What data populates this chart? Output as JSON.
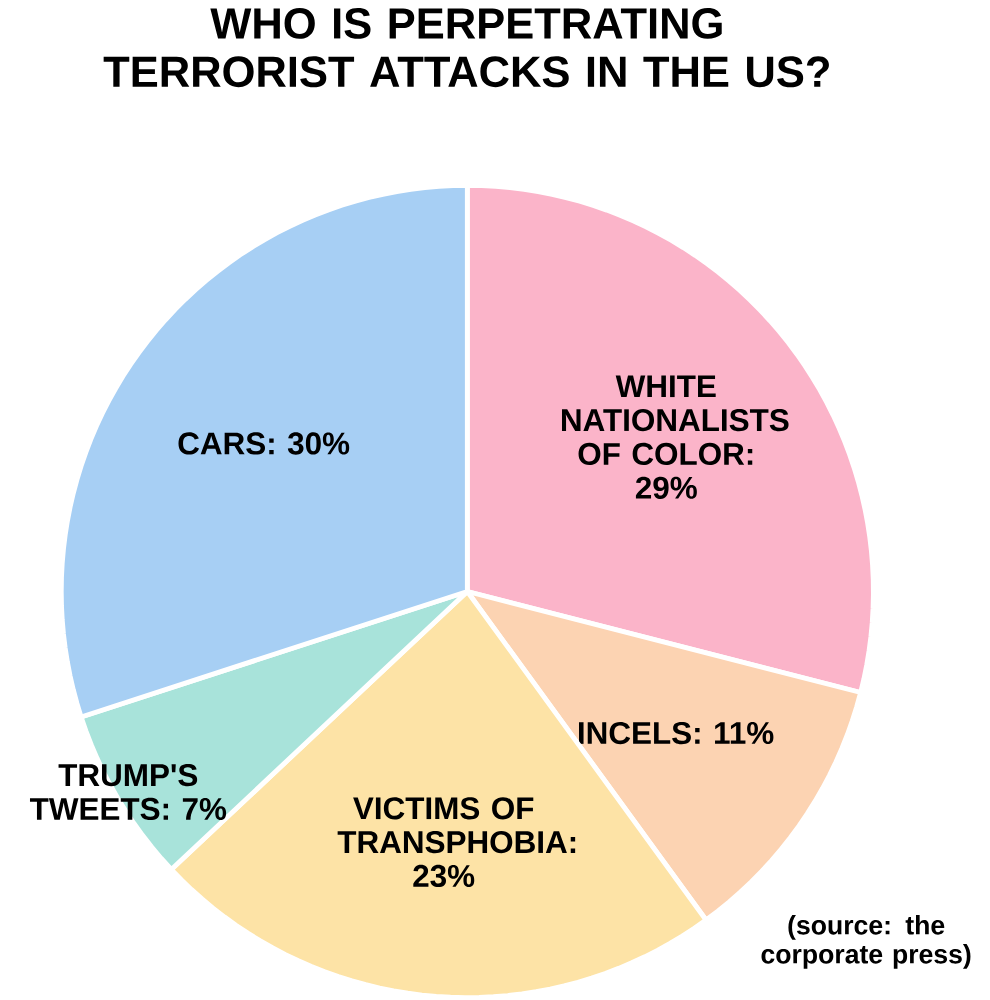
{
  "chart_data": {
    "type": "pie",
    "title": "WHO IS PERPETRATING TERRORIST ATTACKS IN THE US?",
    "categories": [
      "WHITE NATIONALISTS OF COLOR: 29%",
      "INCELS: 11%",
      "VICTIMS OF TRANSPHOBIA: 23%",
      "TRUMP'S TWEETS: 7%",
      "CARS: 30%"
    ],
    "values": [
      29,
      11,
      23,
      7,
      30
    ],
    "colors": [
      "#fbb4c9",
      "#fcd3b2",
      "#fde3a6",
      "#a8e3da",
      "#a7cff4"
    ],
    "annotations": [
      "(source: the corporate press)"
    ]
  }
}
